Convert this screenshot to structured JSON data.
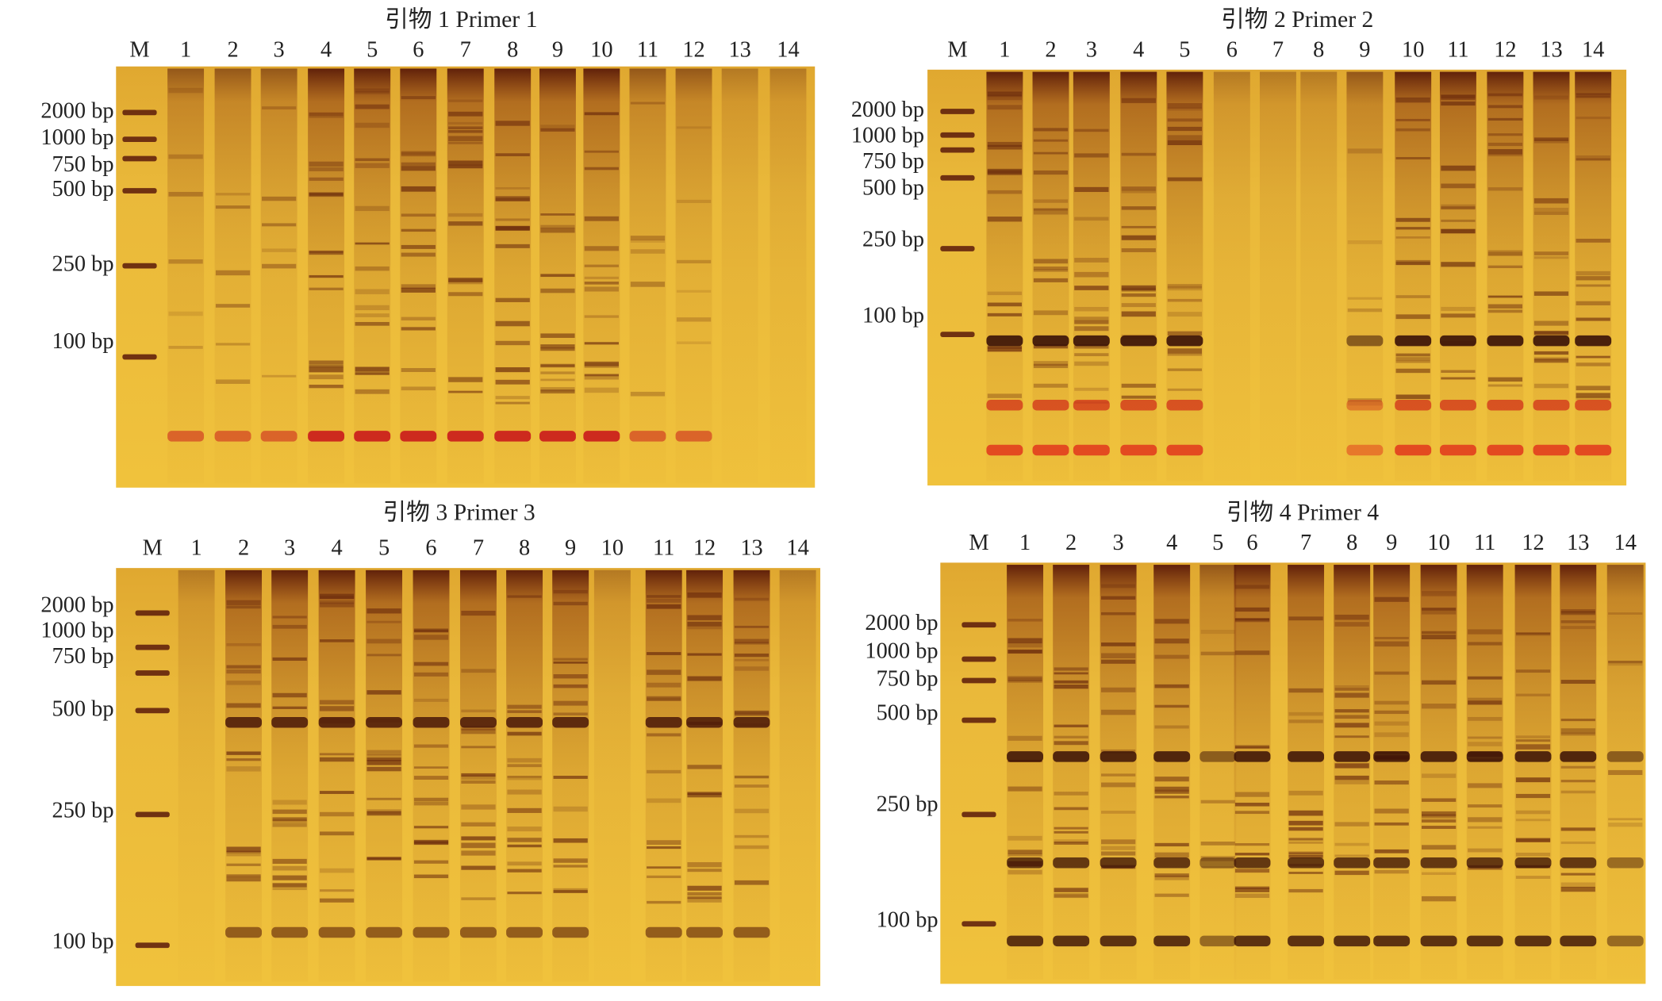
{
  "panels": [
    {
      "title": "引物 1 Primer 1",
      "lanes": [
        "M",
        "1",
        "2",
        "3",
        "4",
        "5",
        "6",
        "7",
        "8",
        "9",
        "10",
        "11",
        "12",
        "13",
        "14"
      ],
      "markers": [
        "2000 bp",
        "1000 bp",
        "750 bp",
        "500 bp",
        "250 bp",
        "100 bp"
      ]
    },
    {
      "title": "引物 2 Primer 2",
      "lanes": [
        "M",
        "1",
        "2",
        "3",
        "4",
        "5",
        "6",
        "7",
        "8",
        "9",
        "10",
        "11",
        "12",
        "13",
        "14"
      ],
      "markers": [
        "2000 bp",
        "1000 bp",
        "750 bp",
        "500 bp",
        "250 bp",
        "100 bp"
      ]
    },
    {
      "title": "引物 3 Primer 3",
      "lanes": [
        "M",
        "1",
        "2",
        "3",
        "4",
        "5",
        "6",
        "7",
        "8",
        "9",
        "10",
        "11",
        "12",
        "13",
        "14"
      ],
      "markers": [
        "2000 bp",
        "1000 bp",
        "750 bp",
        "500 bp",
        "250 bp",
        "100 bp"
      ]
    },
    {
      "title": "引物 4 Primer 4",
      "lanes": [
        "M",
        "1",
        "2",
        "3",
        "4",
        "5",
        "6",
        "7",
        "8",
        "9",
        "10",
        "11",
        "12",
        "13",
        "14"
      ],
      "markers": [
        "2000 bp",
        "1000 bp",
        "750 bp",
        "500 bp",
        "250 bp",
        "100 bp"
      ]
    }
  ]
}
